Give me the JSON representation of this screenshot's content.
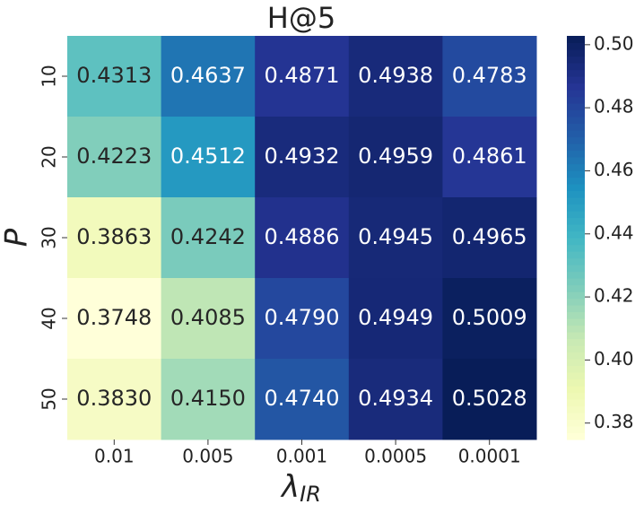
{
  "chart_data": {
    "type": "heatmap",
    "title": "H@5",
    "xlabel": "λ",
    "xlabel_subscript": "IR",
    "ylabel": "P",
    "x_categories": [
      "0.01",
      "0.005",
      "0.001",
      "0.0005",
      "0.0001"
    ],
    "y_categories": [
      "10",
      "20",
      "30",
      "40",
      "50"
    ],
    "values": [
      [
        0.4313,
        0.4637,
        0.4871,
        0.4938,
        0.4783
      ],
      [
        0.4223,
        0.4512,
        0.4932,
        0.4959,
        0.4861
      ],
      [
        0.3863,
        0.4242,
        0.4886,
        0.4945,
        0.4965
      ],
      [
        0.3748,
        0.4085,
        0.479,
        0.4949,
        0.5009
      ],
      [
        0.383,
        0.415,
        0.474,
        0.4934,
        0.5028
      ]
    ],
    "value_labels": [
      [
        "0.4313",
        "0.4637",
        "0.4871",
        "0.4938",
        "0.4783"
      ],
      [
        "0.4223",
        "0.4512",
        "0.4932",
        "0.4959",
        "0.4861"
      ],
      [
        "0.3863",
        "0.4242",
        "0.4886",
        "0.4945",
        "0.4965"
      ],
      [
        "0.3748",
        "0.4085",
        "0.4790",
        "0.4949",
        "0.5009"
      ],
      [
        "0.3830",
        "0.4150",
        "0.4740",
        "0.4934",
        "0.5028"
      ]
    ],
    "colormap": [
      "#ffffd9",
      "#edf8b1",
      "#c7e9b4",
      "#7fcdbb",
      "#41b6c4",
      "#1d91c0",
      "#225ea8",
      "#253494",
      "#081d58"
    ],
    "clim": [
      0.3748,
      0.5028
    ],
    "cticks": [
      0.38,
      {
        "value": 0.4,
        "label": "0.40"
      },
      0.42,
      0.44,
      0.46,
      0.48,
      {
        "value": 0.5,
        "label": "0.50"
      }
    ]
  }
}
